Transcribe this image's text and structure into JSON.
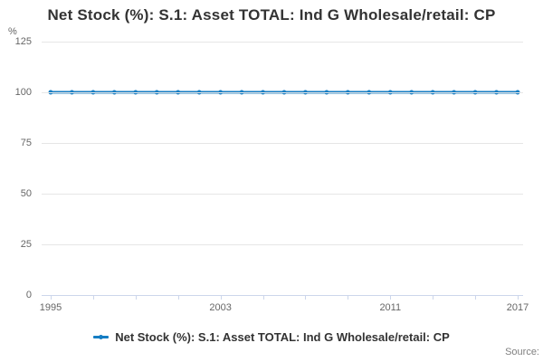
{
  "title": "Net Stock (%): S.1: Asset TOTAL: Ind G Wholesale/retail: CP",
  "y_axis_unit": "%",
  "legend": {
    "label": "Net Stock (%): S.1: Asset TOTAL: Ind G Wholesale/retail: CP"
  },
  "source_label": "Source:",
  "colors": {
    "line": "#157dc3",
    "grid": "#e6e6e6",
    "axis": "#ccd6eb",
    "tick_label": "#666666",
    "title": "#333333",
    "source": "#808080"
  },
  "chart_data": {
    "type": "line",
    "title": "Net Stock (%): S.1: Asset TOTAL: Ind G Wholesale/retail: CP",
    "xlabel": "",
    "ylabel": "%",
    "x": [
      1995,
      1996,
      1997,
      1998,
      1999,
      2000,
      2001,
      2002,
      2003,
      2004,
      2005,
      2006,
      2007,
      2008,
      2009,
      2010,
      2011,
      2012,
      2013,
      2014,
      2015,
      2016,
      2017
    ],
    "series": [
      {
        "name": "Net Stock (%): S.1: Asset TOTAL: Ind G Wholesale/retail: CP",
        "values": [
          100,
          100,
          100,
          100,
          100,
          100,
          100,
          100,
          100,
          100,
          100,
          100,
          100,
          100,
          100,
          100,
          100,
          100,
          100,
          100,
          100,
          100,
          100
        ]
      }
    ],
    "ylim": [
      0,
      125
    ],
    "y_ticks": [
      0,
      25,
      50,
      75,
      100,
      125
    ],
    "x_tick_labels": [
      "1995",
      "2003",
      "2011",
      "2017"
    ],
    "x_minor_tick_interval": 2,
    "grid": "horizontal",
    "legend_position": "bottom",
    "marker": "circle"
  }
}
